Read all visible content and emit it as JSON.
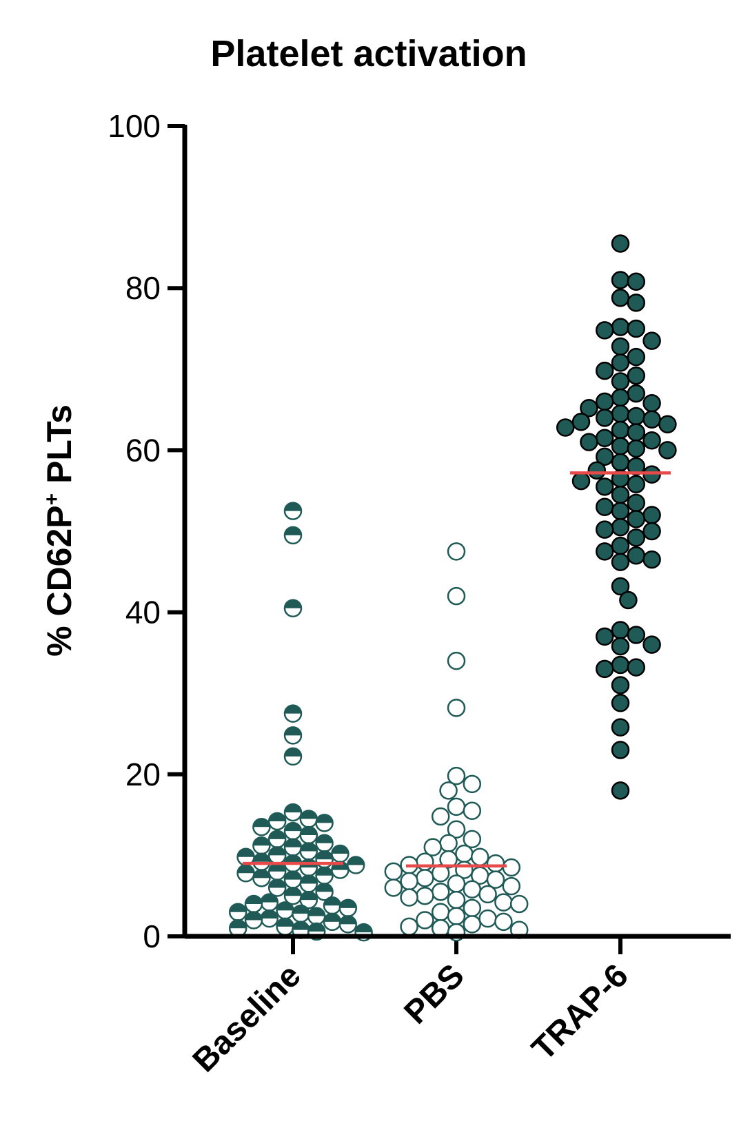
{
  "chart_data": {
    "type": "scatter",
    "title": "Platelet activation",
    "ylabel": "% CD62P⁺ PLTs",
    "ylabel_main": "% CD62P",
    "ylabel_sup": "+",
    "ylabel_tail": " PLTs",
    "xlabel": "",
    "ylim": [
      0,
      100
    ],
    "yticks": [
      0,
      20,
      40,
      60,
      80,
      100
    ],
    "categories": [
      "Baseline",
      "PBS",
      "TRAP-6"
    ],
    "colors": {
      "dot": "#1f5a57",
      "median": "#e84a4a",
      "axis": "#000000"
    },
    "series": [
      {
        "category": "Baseline",
        "marker": "half-filled",
        "median": 9,
        "values": [
          52.5,
          49.5,
          40.5,
          27.5,
          24.8,
          22.2,
          15.3,
          14.5,
          14.2,
          14.0,
          13.5,
          13.0,
          12.5,
          12.0,
          11.5,
          11.2,
          11.0,
          10.5,
          10.2,
          10.0,
          9.8,
          9.5,
          9.2,
          9.0,
          8.8,
          8.5,
          8.2,
          8.0,
          7.8,
          7.5,
          7.2,
          7.0,
          6.5,
          6.0,
          5.5,
          5.0,
          4.5,
          4.2,
          4.0,
          3.8,
          3.5,
          3.2,
          3.0,
          2.8,
          2.5,
          2.2,
          2.0,
          1.8,
          1.5,
          1.2,
          1.0,
          0.8,
          0.6,
          0.5
        ]
      },
      {
        "category": "PBS",
        "marker": "open",
        "median": 8.7,
        "values": [
          47.5,
          42.0,
          34.0,
          28.2,
          19.8,
          18.8,
          18.0,
          16.0,
          15.5,
          14.8,
          13.2,
          12.0,
          11.5,
          11.0,
          10.2,
          9.8,
          9.5,
          9.2,
          9.0,
          8.8,
          8.5,
          8.2,
          8.0,
          7.8,
          7.5,
          7.2,
          7.0,
          6.8,
          6.5,
          6.2,
          6.0,
          5.8,
          5.5,
          5.2,
          5.0,
          4.8,
          4.5,
          4.2,
          4.0,
          3.5,
          3.0,
          2.5,
          2.2,
          2.0,
          1.8,
          1.5,
          1.2,
          1.0,
          0.8,
          0.5
        ]
      },
      {
        "category": "TRAP-6",
        "marker": "filled",
        "median": 57.2,
        "values": [
          85.5,
          81.0,
          80.8,
          78.8,
          78.2,
          75.2,
          75.0,
          74.8,
          73.5,
          72.8,
          71.5,
          70.8,
          69.8,
          69.2,
          68.5,
          67.0,
          66.5,
          66.0,
          65.8,
          65.2,
          64.5,
          64.2,
          64.0,
          63.8,
          63.5,
          63.2,
          62.8,
          62.5,
          62.2,
          61.5,
          61.2,
          61.0,
          60.5,
          60.2,
          60.0,
          59.2,
          58.5,
          58.0,
          57.5,
          57.0,
          56.5,
          56.2,
          55.8,
          55.5,
          54.5,
          53.5,
          53.0,
          52.5,
          52.0,
          51.5,
          50.5,
          50.2,
          50.0,
          49.2,
          48.2,
          47.5,
          47.0,
          46.5,
          46.2,
          43.2,
          41.5,
          37.8,
          37.2,
          37.0,
          36.0,
          35.8,
          33.5,
          33.2,
          33.0,
          31.0,
          28.8,
          25.8,
          23.0,
          18.0
        ]
      }
    ]
  }
}
